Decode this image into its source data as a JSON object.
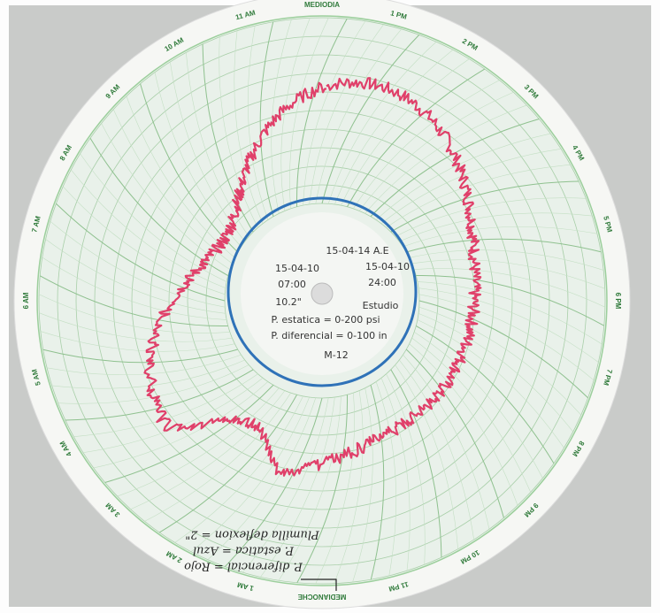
{
  "hour_labels": [
    "MEDIODIA",
    "1 PM",
    "2 PM",
    "3 PM",
    "4 PM",
    "5 PM",
    "6 PM",
    "7 PM",
    "8 PM",
    "9 PM",
    "10 PM",
    "11 PM",
    "MEDIANOCHE",
    "1 AM",
    "2 AM",
    "3 AM",
    "4 AM",
    "5 AM",
    "6 AM",
    "7 AM",
    "8 AM",
    "9 AM",
    "10 AM",
    "11 AM"
  ],
  "center_labels": [
    "15-04-14 A.E",
    "15-04-10",
    "15-04-10",
    "07:00",
    "24:00",
    "10.2\"",
    "Estudio",
    "P. estatica = 0-200 psi",
    "P. diferencial = 0-100 in",
    "M-12"
  ],
  "notes": [
    "P. diferencial = Rojo",
    "P. estatica = Azul",
    "Plumilla deflexion = 2\""
  ]
}
